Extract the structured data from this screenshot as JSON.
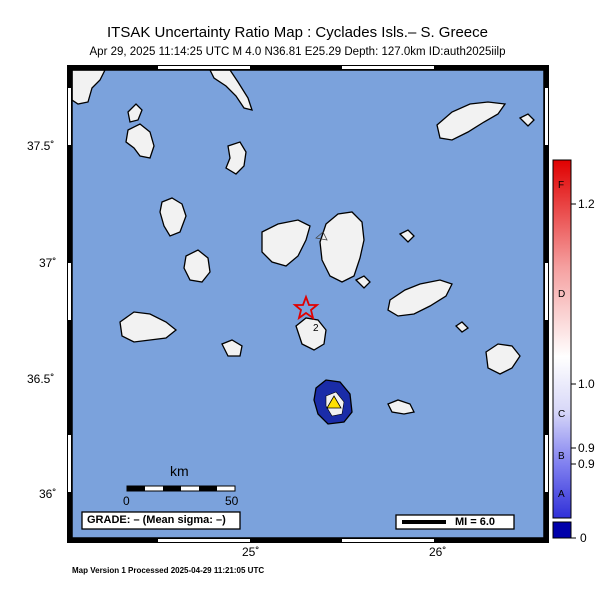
{
  "title": "ITSAK Uncertainty Ratio Map : Cyclades Isls.– S. Greece",
  "subtitle": "Apr 29, 2025 11:14:25 UTC   M 4.0   N36.81 E25.29   Depth: 127.0km   ID:auth2025iilp",
  "footer": "Map Version 1 Processed 2025-04-29 11:21:05 UTC",
  "axes": {
    "lat_labels": [
      "37.5˚",
      "37˚",
      "36.5˚",
      "36˚"
    ],
    "lon_labels": [
      "25˚",
      "26˚"
    ]
  },
  "scale_bar": {
    "unit_label": "km",
    "start_label": "0",
    "end_label": "50"
  },
  "grade_box": "GRADE: – (Mean sigma: –)",
  "mi_legend": "MI = 6.0",
  "epicenter": {
    "lat": 36.81,
    "lon": 25.29,
    "symbol": "red-star"
  },
  "station_labels": [
    "2"
  ],
  "colorbar": {
    "tick_labels": [
      "1.2",
      "1.0",
      "0.9",
      "0.9",
      "0"
    ],
    "grade_letters": [
      "F",
      "D",
      "C",
      "B",
      "A"
    ],
    "colors": {
      "top": "#e00000",
      "mid": "#ffffff",
      "low": "#3a3ae0",
      "bottom": "#0000aa"
    }
  },
  "colors": {
    "sea": "#7ba2dc",
    "land": "#f2f2f2",
    "frame": "#000000"
  }
}
